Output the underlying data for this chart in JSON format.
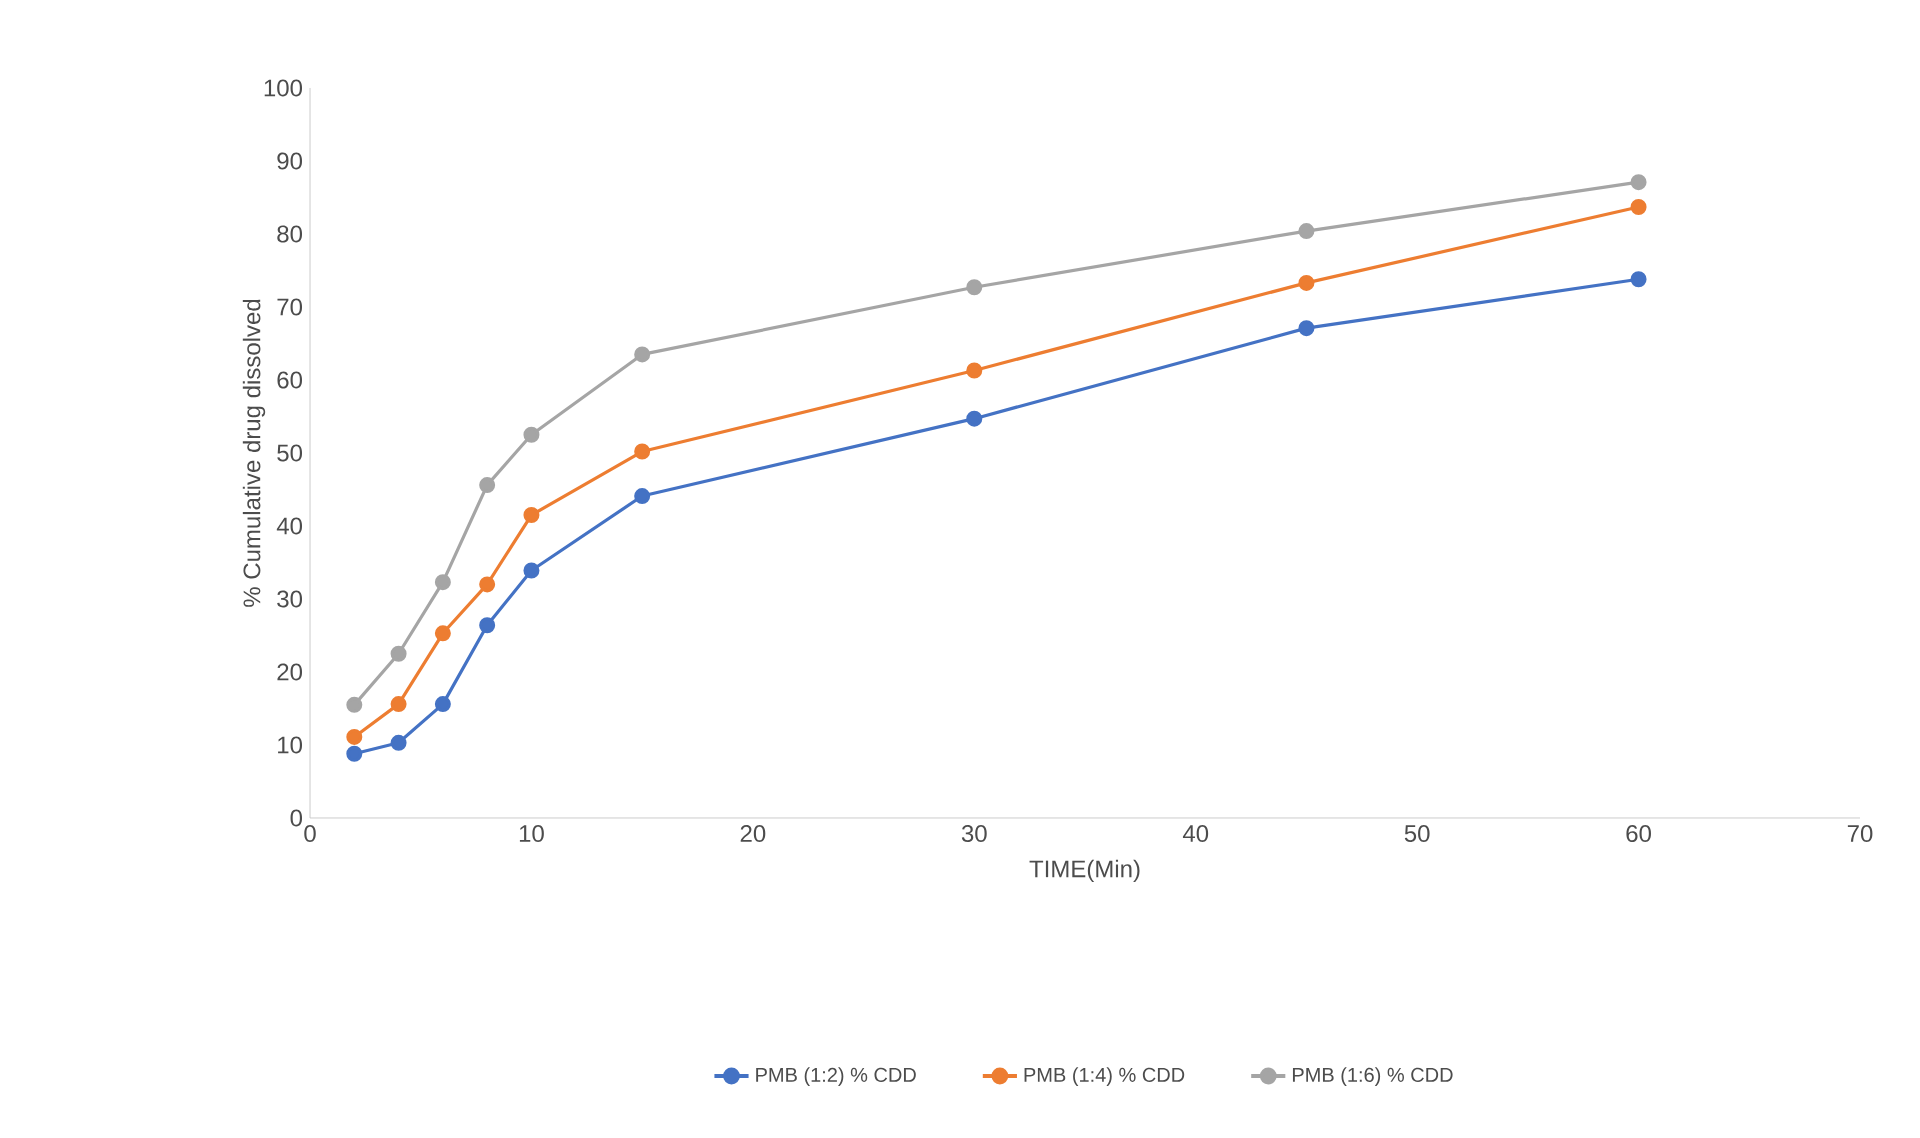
{
  "chart_data": {
    "type": "line",
    "xlabel": "TIME(Min)",
    "ylabel": "% Cumulative drug dissolved",
    "x": [
      2,
      4,
      6,
      8,
      10,
      15,
      30,
      45,
      60
    ],
    "series": [
      {
        "name": "PMB (1:2) % CDD",
        "color": "#4472c4",
        "values": [
          8.8,
          10.3,
          15.6,
          26.4,
          33.9,
          44.1,
          54.7,
          67.1,
          73.8
        ]
      },
      {
        "name": "PMB (1:4) % CDD",
        "color": "#ed7d31",
        "values": [
          11.1,
          15.6,
          25.3,
          32.0,
          41.5,
          50.2,
          61.3,
          73.3,
          83.7
        ]
      },
      {
        "name": "PMB (1:6) % CDD",
        "color": "#a5a5a5",
        "values": [
          15.5,
          22.5,
          32.3,
          45.6,
          52.5,
          63.5,
          72.7,
          80.4,
          87.1
        ]
      }
    ],
    "xlim": [
      0,
      70
    ],
    "xticks": [
      0,
      10,
      20,
      30,
      40,
      50,
      60,
      70
    ],
    "ylim": [
      0,
      100
    ],
    "yticks": [
      0,
      10,
      20,
      30,
      40,
      50,
      60,
      70,
      80,
      90,
      100
    ],
    "grid": false,
    "legend": "bottom",
    "marker": "circle",
    "line_style": "solid"
  }
}
